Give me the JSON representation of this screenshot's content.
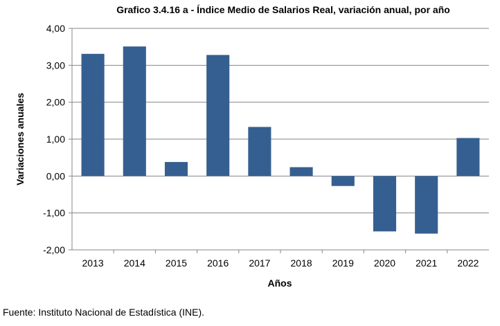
{
  "chart_data": {
    "type": "bar",
    "title": "Grafico 3.4.16 a - Índice Medio de Salarios Real, variación anual, por año",
    "xlabel": "Años",
    "ylabel": "Variaciones anuales",
    "categories": [
      "2013",
      "2014",
      "2015",
      "2016",
      "2017",
      "2018",
      "2019",
      "2020",
      "2021",
      "2022"
    ],
    "values": [
      3.31,
      3.51,
      0.38,
      3.28,
      1.33,
      0.24,
      -0.27,
      -1.5,
      -1.56,
      1.03
    ],
    "ylim": [
      -2,
      4
    ],
    "yticks": [
      -2,
      -1,
      0,
      1,
      2,
      3,
      4
    ],
    "ytick_labels": [
      "-2,00",
      "-1,00",
      "0,00",
      "1,00",
      "2,00",
      "3,00",
      "4,00"
    ],
    "grid": true,
    "bar_color": "#365F91"
  },
  "source": "Fuente: Instituto Nacional de Estadística (INE)."
}
